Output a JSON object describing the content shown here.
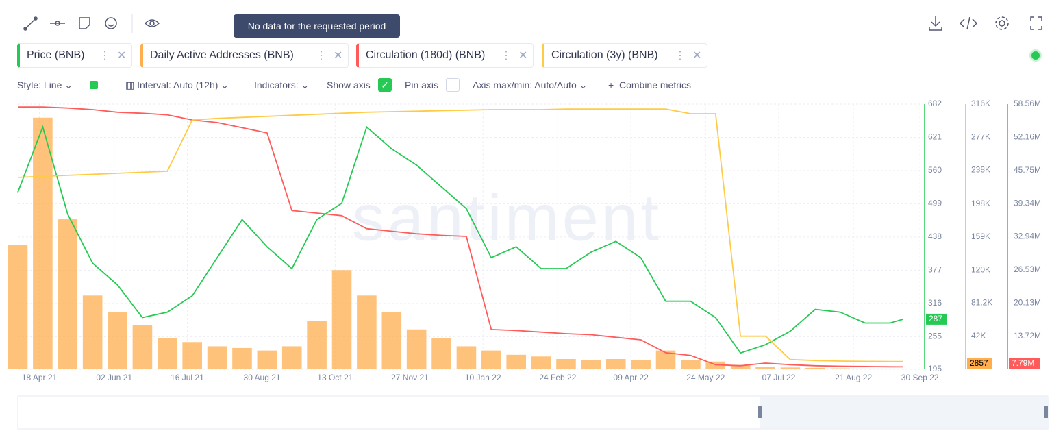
{
  "tooltip": "No data for the requested period",
  "controls": {
    "style": "Style: Line",
    "interval": "Interval: Auto (12h)",
    "indicators": "Indicators:",
    "show_axis": "Show axis",
    "pin_axis": "Pin axis",
    "axis_range": "Axis max/min: Auto/Auto",
    "combine": "Combine metrics"
  },
  "watermark": "santiment",
  "chart_data": {
    "type": "line",
    "grid": true,
    "x": [
      "2021-04-05",
      "2021-04-20",
      "2021-05-05",
      "2021-05-20",
      "2021-06-04",
      "2021-06-19",
      "2021-07-04",
      "2021-07-19",
      "2021-08-03",
      "2021-08-18",
      "2021-09-02",
      "2021-09-17",
      "2021-10-02",
      "2021-10-17",
      "2021-11-01",
      "2021-11-16",
      "2021-12-01",
      "2021-12-16",
      "2021-12-31",
      "2022-01-15",
      "2022-01-30",
      "2022-02-14",
      "2022-03-01",
      "2022-03-16",
      "2022-03-31",
      "2022-04-15",
      "2022-04-30",
      "2022-05-15",
      "2022-05-30",
      "2022-06-14",
      "2022-06-29",
      "2022-07-14",
      "2022-07-29",
      "2022-08-13",
      "2022-08-28",
      "2022-09-12",
      "2022-09-20"
    ],
    "xlim": [
      "2021-04-05",
      "2022-10-02"
    ],
    "xticks": [
      {
        "value": "2021-04-18",
        "label": "18 Apr 21"
      },
      {
        "value": "2021-06-02",
        "label": "02 Jun 21"
      },
      {
        "value": "2021-07-16",
        "label": "16 Jul 21"
      },
      {
        "value": "2021-08-30",
        "label": "30 Aug 21"
      },
      {
        "value": "2021-10-13",
        "label": "13 Oct 21"
      },
      {
        "value": "2021-11-27",
        "label": "27 Nov 21"
      },
      {
        "value": "2022-01-10",
        "label": "10 Jan 22"
      },
      {
        "value": "2022-02-24",
        "label": "24 Feb 22"
      },
      {
        "value": "2022-04-09",
        "label": "09 Apr 22"
      },
      {
        "value": "2022-05-24",
        "label": "24 May 22"
      },
      {
        "value": "2022-07-07",
        "label": "07 Jul 22"
      },
      {
        "value": "2022-08-21",
        "label": "21 Aug 22"
      },
      {
        "value": "2022-09-30",
        "label": "30 Sep 22"
      }
    ],
    "ylim": [
      195,
      682
    ],
    "yticks": [
      195,
      255,
      316,
      377,
      438,
      499,
      560,
      621,
      682
    ],
    "y2lim": [
      2857,
      316000
    ],
    "y2ticks": [
      {
        "value": 42000,
        "label": "42K"
      },
      {
        "value": 81200,
        "label": "81.2K"
      },
      {
        "value": 120000,
        "label": "120K"
      },
      {
        "value": 159000,
        "label": "159K"
      },
      {
        "value": 198000,
        "label": "198K"
      },
      {
        "value": 238000,
        "label": "238K"
      },
      {
        "value": 277000,
        "label": "277K"
      },
      {
        "value": 316000,
        "label": "316K"
      }
    ],
    "y3lim": [
      7310000,
      58560000
    ],
    "y3ticks": [
      {
        "value": 13720000,
        "label": "13.72M"
      },
      {
        "value": 20130000,
        "label": "20.13M"
      },
      {
        "value": 26530000,
        "label": "26.53M"
      },
      {
        "value": 32940000,
        "label": "32.94M"
      },
      {
        "value": 39340000,
        "label": "39.34M"
      },
      {
        "value": 45750000,
        "label": "45.75M"
      },
      {
        "value": 52160000,
        "label": "52.16M"
      },
      {
        "value": 58560000,
        "label": "58.56M"
      }
    ],
    "series": [
      {
        "name": "Price (BNB)",
        "color": "#26c953",
        "type": "line",
        "values": [
          520,
          640,
          480,
          390,
          350,
          290,
          300,
          330,
          400,
          470,
          420,
          380,
          470,
          500,
          640,
          600,
          570,
          530,
          490,
          400,
          420,
          380,
          380,
          410,
          430,
          400,
          320,
          320,
          290,
          225,
          240,
          265,
          305,
          300,
          280,
          280,
          287
        ]
      },
      {
        "name": "Daily Active Addresses (BNB)",
        "color": "#ffad4d",
        "type": "bar",
        "axis": "y2",
        "values": [
          150000,
          300000,
          180000,
          90000,
          70000,
          55000,
          40000,
          35000,
          30000,
          28000,
          25000,
          30000,
          60000,
          120000,
          90000,
          70000,
          50000,
          40000,
          30000,
          25000,
          20000,
          18000,
          15000,
          14000,
          15000,
          14000,
          25000,
          14000,
          12000,
          8000,
          6000,
          5000,
          4500,
          4000,
          3500,
          3000,
          2857
        ]
      },
      {
        "name": "Circulation (180d) (BNB)",
        "color": "#ff5b5b",
        "type": "line",
        "axis": "y3",
        "values": [
          58000000,
          58000000,
          57800000,
          57500000,
          57000000,
          56800000,
          56500000,
          55500000,
          55000000,
          54000000,
          53000000,
          38000000,
          37500000,
          37000000,
          34500000,
          34000000,
          33500000,
          33200000,
          33000000,
          15000000,
          14800000,
          14500000,
          14200000,
          14000000,
          13500000,
          13000000,
          10500000,
          10000000,
          8200000,
          8000000,
          8500000,
          8200000,
          8000000,
          7900000,
          7850000,
          7800000,
          7790000
        ],
        "last_value_label": "7.79M"
      },
      {
        "name": "Circulation (3y) (BNB)",
        "color": "#ffcb47",
        "type": "line",
        "axis": "y3",
        "values": [
          44400000,
          44600000,
          44800000,
          45000000,
          45200000,
          45400000,
          45600000,
          55500000,
          55800000,
          56000000,
          56200000,
          56400000,
          56600000,
          56800000,
          57000000,
          57100000,
          57200000,
          57300000,
          57400000,
          57500000,
          57500000,
          57500000,
          57600000,
          57600000,
          57600000,
          57600000,
          57600000,
          56700000,
          56700000,
          13700000,
          13700000,
          9200000,
          9000000,
          8900000,
          8850000,
          8800000,
          8800000
        ]
      }
    ]
  }
}
